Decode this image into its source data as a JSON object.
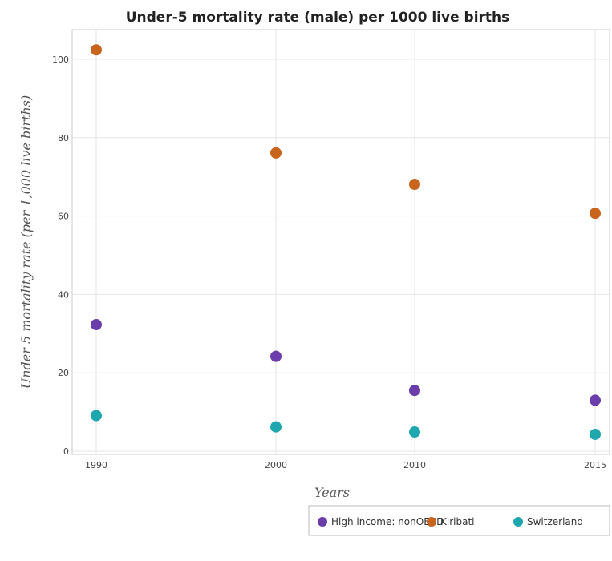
{
  "chart_data": {
    "type": "scatter",
    "title": "Under-5 mortality rate (male) per 1000 live births",
    "xlabel": "Years",
    "ylabel": "Under 5 mortality rate (per 1,000 live births)",
    "categories": [
      "1990",
      "2000",
      "2010",
      "2015"
    ],
    "yticks": [
      "0",
      "20",
      "40",
      "60",
      "80",
      "100"
    ],
    "ylim": [
      0,
      107
    ],
    "grid": true,
    "legend_position": "bottom-right",
    "series": [
      {
        "name": "High income: nonOECD",
        "color": "#6a3daa",
        "values": [
          32.3,
          24.2,
          15.5,
          13.0
        ]
      },
      {
        "name": "Kiribati",
        "color": "#c8641b",
        "values": [
          102.4,
          76.1,
          68.1,
          60.7
        ]
      },
      {
        "name": "Switzerland",
        "color": "#1fa7b0",
        "values": [
          9.1,
          6.2,
          4.9,
          4.3
        ]
      }
    ]
  }
}
